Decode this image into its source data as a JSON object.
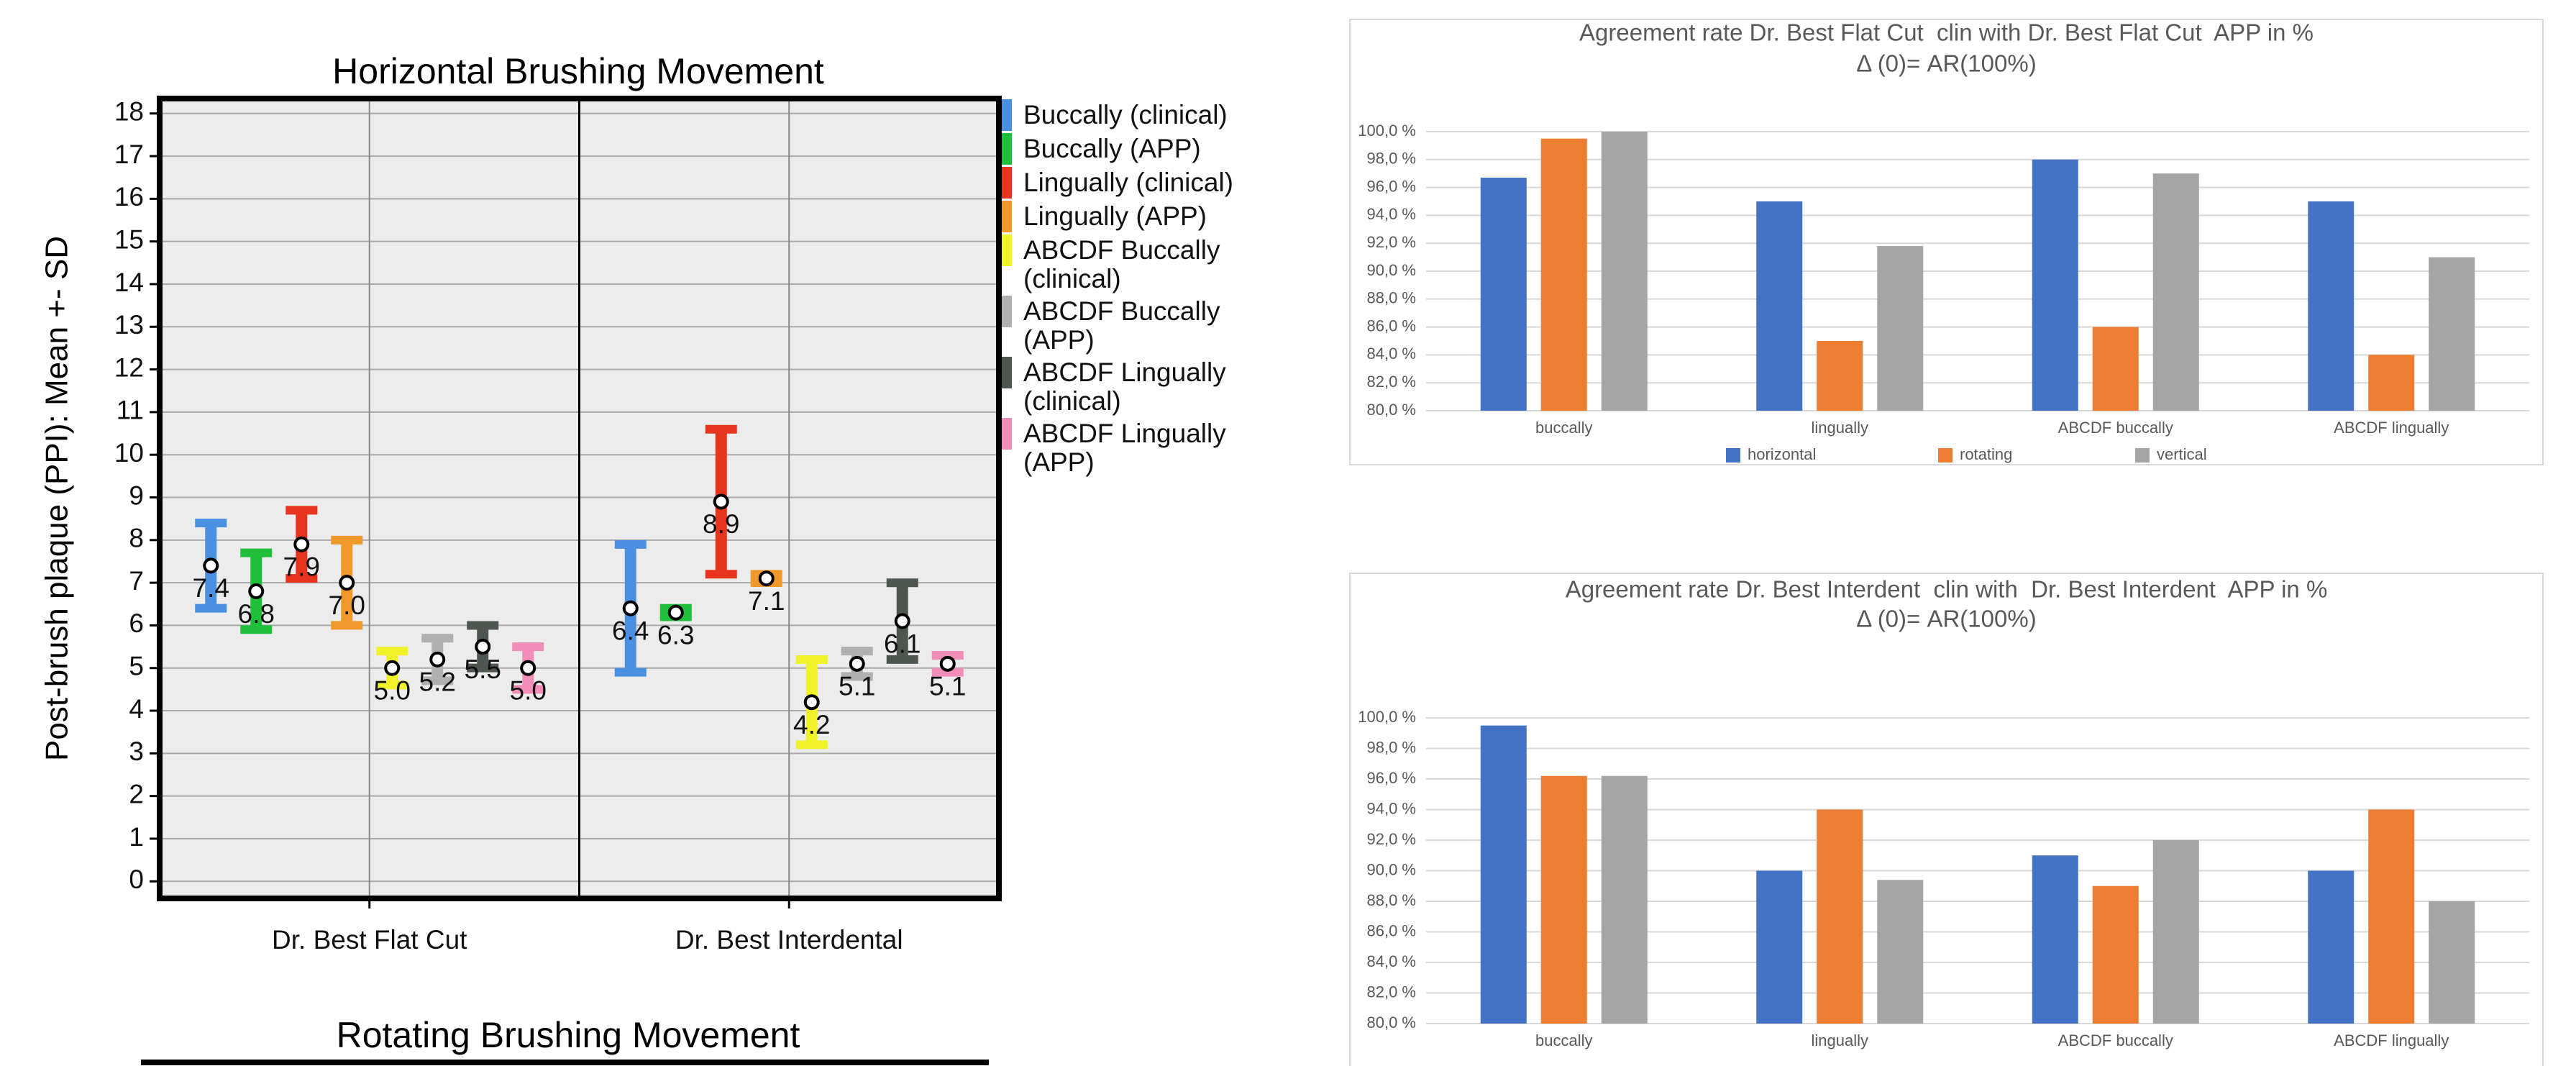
{
  "chart_data": [
    {
      "type": "errorbar",
      "title": "Horizontal Brushing Movement",
      "ylabel": "Post-brush plaque (PPI): Mean +- SD",
      "categories": [
        "Dr. Best Flat Cut",
        "Dr. Best Interdental"
      ],
      "ylim": [
        -0.4,
        18.35
      ],
      "yticks": [
        0,
        1,
        2,
        3,
        4,
        5,
        6,
        7,
        8,
        9,
        10,
        11,
        12,
        13,
        14,
        15,
        16,
        17,
        18
      ],
      "grid": true,
      "series": [
        {
          "name": "Buccally (clinical)",
          "color": "#4a90e2",
          "values": [
            7.4,
            6.4
          ],
          "value_labels": [
            "7.4",
            "6.4"
          ],
          "errors": [
            1.1,
            1.6
          ]
        },
        {
          "name": "Buccally (APP)",
          "color": "#1fbf3a",
          "values": [
            6.8,
            6.3
          ],
          "value_labels": [
            "6.8",
            "6.3"
          ],
          "errors": [
            1.0,
            0.2
          ]
        },
        {
          "name": "Lingually (clinical)",
          "color": "#e8341c",
          "values": [
            7.9,
            8.9
          ],
          "value_labels": [
            "7.9",
            "8.9"
          ],
          "errors": [
            0.9,
            1.8
          ]
        },
        {
          "name": "Lingually (APP)",
          "color": "#f0982a",
          "values": [
            7.0,
            7.1
          ],
          "value_labels": [
            "7.0",
            "7.1"
          ],
          "errors": [
            1.1,
            0.2
          ]
        },
        {
          "name": "ABCDF Buccally (clinical)",
          "color": "#f2f22a",
          "values": [
            5.0,
            4.2
          ],
          "value_labels": [
            "5.0",
            "4.2"
          ],
          "errors": [
            0.5,
            1.1
          ]
        },
        {
          "name": "ABCDF Buccally (APP)",
          "color": "#b0b0b0",
          "values": [
            5.2,
            5.1
          ],
          "value_labels": [
            "5.2",
            "5.1"
          ],
          "errors": [
            0.6,
            0.4
          ]
        },
        {
          "name": "ABCDF Lingually (clinical)",
          "color": "#4d5750",
          "values": [
            5.5,
            6.1
          ],
          "value_labels": [
            "5.5",
            "6.1"
          ],
          "errors": [
            0.6,
            1.0
          ]
        },
        {
          "name": "ABCDF Lingually (APP)",
          "color": "#f28cb8",
          "values": [
            5.0,
            5.1
          ],
          "value_labels": [
            "5.0",
            "5.1"
          ],
          "errors": [
            0.6,
            0.3
          ]
        }
      ]
    },
    {
      "type": "bar",
      "title": "Agreement rate Dr. Best Flat Cut  clin with Dr. Best Flat Cut  APP in %",
      "subtitle": "Δ (0)= AR(100%)",
      "categories": [
        "buccally",
        "lingually",
        "ABCDF buccally",
        "ABCDF lingually"
      ],
      "ylim": [
        80,
        100
      ],
      "grid": true,
      "legend": true,
      "yticks": [
        {
          "value": 80,
          "label": "80,0 %"
        },
        {
          "value": 82,
          "label": "82,0 %"
        },
        {
          "value": 84,
          "label": "84,0 %"
        },
        {
          "value": 86,
          "label": "86,0 %"
        },
        {
          "value": 88,
          "label": "88,0 %"
        },
        {
          "value": 90,
          "label": "90,0 %"
        },
        {
          "value": 92,
          "label": "92,0 %"
        },
        {
          "value": 94,
          "label": "94,0 %"
        },
        {
          "value": 96,
          "label": "96,0 %"
        },
        {
          "value": 98,
          "label": "98,0 %"
        },
        {
          "value": 100,
          "label": "100,0 %"
        }
      ],
      "series": [
        {
          "name": "horizontal",
          "color": "#4472c4",
          "values": [
            96.7,
            95,
            98,
            95
          ]
        },
        {
          "name": "rotating",
          "color": "#ed7d31",
          "values": [
            99.5,
            85,
            86,
            84
          ]
        },
        {
          "name": "vertical",
          "color": "#a5a5a5",
          "values": [
            100,
            91.8,
            97,
            91
          ]
        }
      ]
    },
    {
      "type": "bar",
      "title": "Agreement rate Dr. Best Interdent  clin with  Dr. Best Interdent  APP in %",
      "subtitle": "Δ (0)= AR(100%)",
      "categories": [
        "buccally",
        "lingually",
        "ABCDF buccally",
        "ABCDF lingually"
      ],
      "ylim": [
        80,
        100
      ],
      "grid": true,
      "legend": false,
      "yticks": [
        {
          "value": 80,
          "label": "80,0 %"
        },
        {
          "value": 82,
          "label": "82,0 %"
        },
        {
          "value": 84,
          "label": "84,0 %"
        },
        {
          "value": 86,
          "label": "86,0 %"
        },
        {
          "value": 88,
          "label": "88,0 %"
        },
        {
          "value": 90,
          "label": "90,0 %"
        },
        {
          "value": 92,
          "label": "92,0 %"
        },
        {
          "value": 94,
          "label": "94,0 %"
        },
        {
          "value": 96,
          "label": "96,0 %"
        },
        {
          "value": 98,
          "label": "98,0 %"
        },
        {
          "value": 100,
          "label": "100,0 %"
        }
      ],
      "series": [
        {
          "name": "horizontal",
          "color": "#4472c4",
          "values": [
            99.5,
            90,
            91,
            90
          ]
        },
        {
          "name": "rotating",
          "color": "#ed7d31",
          "values": [
            96.2,
            94,
            89,
            94
          ]
        },
        {
          "name": "vertical",
          "color": "#a5a5a5",
          "values": [
            96.2,
            89.4,
            92,
            88
          ]
        }
      ]
    },
    {
      "type": "errorbar",
      "title": "Rotating Brushing Movement"
    }
  ]
}
